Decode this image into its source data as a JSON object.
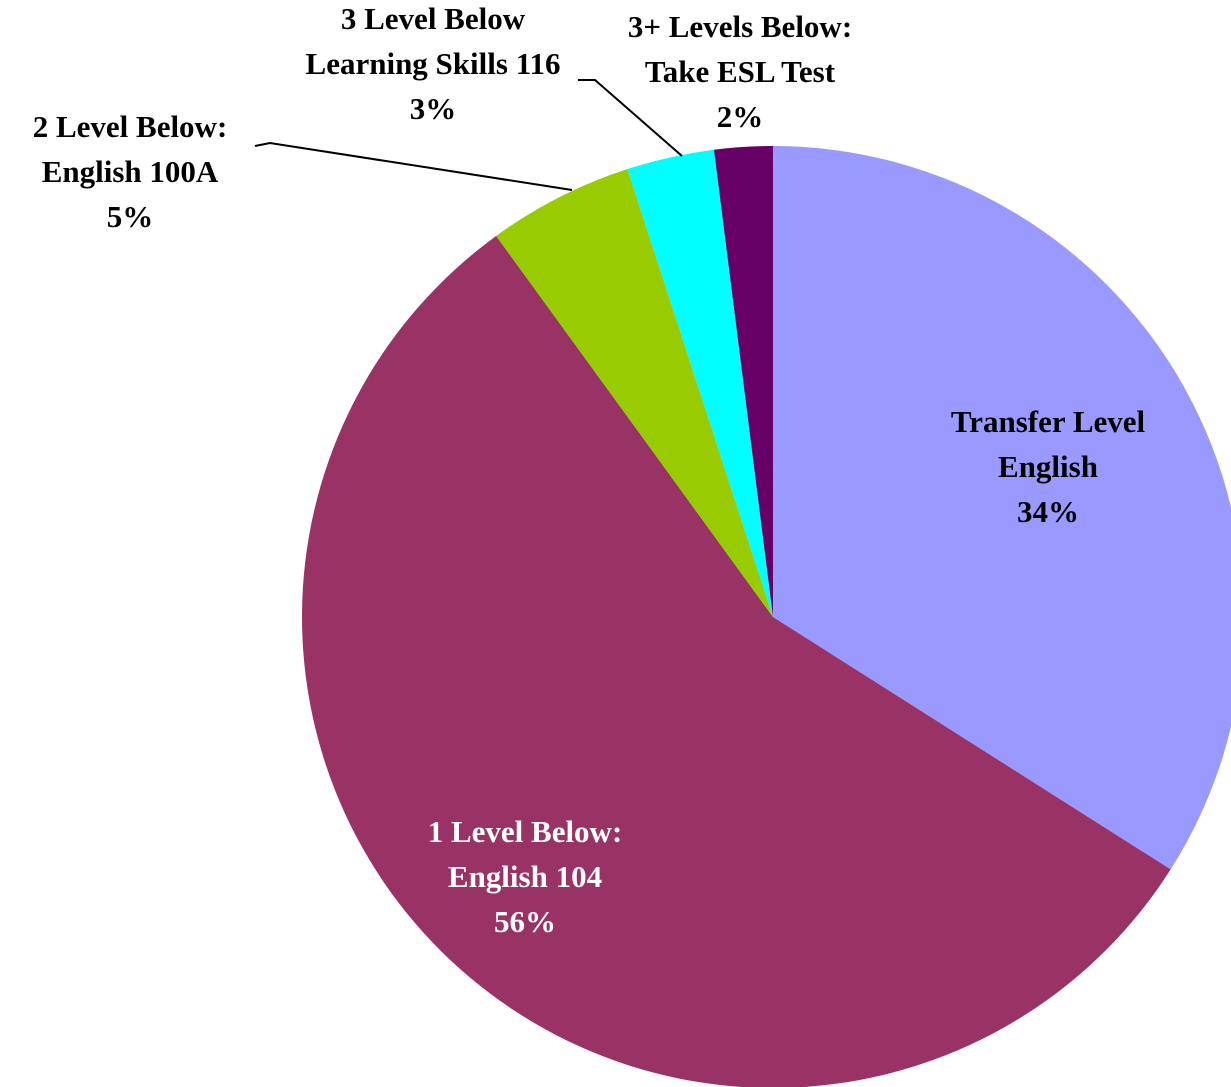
{
  "chart_data": {
    "type": "pie",
    "categories": [
      [
        "Transfer Level",
        "English"
      ],
      [
        "1 Level Below:",
        "English 104"
      ],
      [
        "2 Level Below:",
        "English 100A"
      ],
      [
        "3 Level Below",
        "Learning Skills 116"
      ],
      [
        "3+ Levels Below:",
        "Take ESL Test"
      ]
    ],
    "values": [
      34,
      56,
      5,
      3,
      2
    ],
    "value_labels": [
      "34%",
      "56%",
      "5%",
      "3%",
      "2%"
    ],
    "colors": [
      "#9999ff",
      "#993366",
      "#99cc00",
      "#00ffff",
      "#660066"
    ]
  }
}
